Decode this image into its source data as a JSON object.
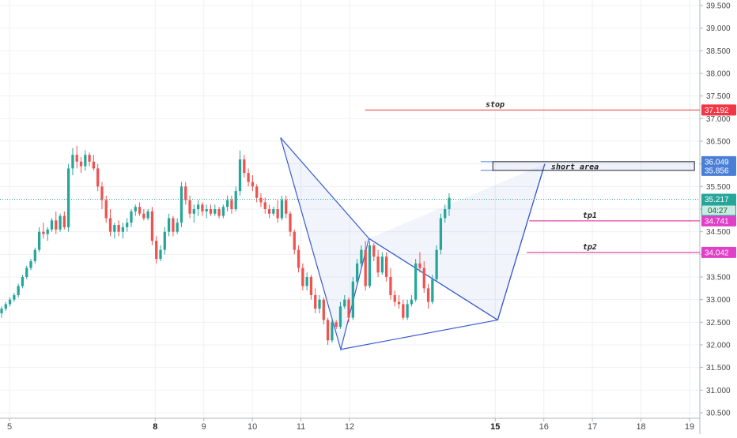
{
  "chart_data": {
    "type": "candlestick",
    "x_ticks": [
      {
        "label": "5",
        "day": 5,
        "bold": false
      },
      {
        "label": "8",
        "day": 8,
        "bold": true
      },
      {
        "label": "9",
        "day": 9,
        "bold": false
      },
      {
        "label": "10",
        "day": 10,
        "bold": false
      },
      {
        "label": "11",
        "day": 11,
        "bold": false
      },
      {
        "label": "12",
        "day": 12,
        "bold": false
      },
      {
        "label": "15",
        "day": 15,
        "bold": true
      },
      {
        "label": "16",
        "day": 16,
        "bold": false
      },
      {
        "label": "17",
        "day": 17,
        "bold": false
      },
      {
        "label": "18",
        "day": 18,
        "bold": false
      },
      {
        "label": "19",
        "day": 19,
        "bold": false
      }
    ],
    "y_ticks": [
      "39.500",
      "39.000",
      "38.500",
      "38.000",
      "37.500",
      "37.000",
      "36.500",
      "36.000",
      "35.500",
      "35.000",
      "34.500",
      "34.000",
      "33.500",
      "33.000",
      "32.500",
      "32.000",
      "31.500",
      "31.000",
      "30.500"
    ],
    "ylim": [
      30.5,
      39.6
    ],
    "xlim": [
      5.0,
      19.25
    ],
    "grid": true,
    "candles_ohlc": [
      [
        32.7,
        32.85,
        32.6,
        32.8
      ],
      [
        32.8,
        32.95,
        32.75,
        32.9
      ],
      [
        32.9,
        33.05,
        32.85,
        33.0
      ],
      [
        33.0,
        33.15,
        32.95,
        33.1
      ],
      [
        33.1,
        33.35,
        33.05,
        33.3
      ],
      [
        33.3,
        33.55,
        33.25,
        33.5
      ],
      [
        33.5,
        33.75,
        33.45,
        33.7
      ],
      [
        33.7,
        33.9,
        33.65,
        33.85
      ],
      [
        33.85,
        34.15,
        33.8,
        34.1
      ],
      [
        34.1,
        34.6,
        34.05,
        34.5
      ],
      [
        34.5,
        34.7,
        34.35,
        34.45
      ],
      [
        34.45,
        34.6,
        34.3,
        34.55
      ],
      [
        34.55,
        34.8,
        34.5,
        34.75
      ],
      [
        34.75,
        34.95,
        34.45,
        34.55
      ],
      [
        34.55,
        34.9,
        34.5,
        34.85
      ],
      [
        34.85,
        34.95,
        34.55,
        34.6
      ],
      [
        34.6,
        36.0,
        34.5,
        35.9
      ],
      [
        35.9,
        36.35,
        35.75,
        36.2
      ],
      [
        36.2,
        36.4,
        35.9,
        36.05
      ],
      [
        36.05,
        36.15,
        35.8,
        35.95
      ],
      [
        35.95,
        36.3,
        35.85,
        36.2
      ],
      [
        36.2,
        36.25,
        35.95,
        36.05
      ],
      [
        36.05,
        36.2,
        35.85,
        35.9
      ],
      [
        35.9,
        36.0,
        35.4,
        35.5
      ],
      [
        35.5,
        35.6,
        35.0,
        35.2
      ],
      [
        35.2,
        35.3,
        34.7,
        34.8
      ],
      [
        34.8,
        35.0,
        34.4,
        34.5
      ],
      [
        34.5,
        34.7,
        34.35,
        34.65
      ],
      [
        34.65,
        34.75,
        34.4,
        34.5
      ],
      [
        34.5,
        34.7,
        34.35,
        34.6
      ],
      [
        34.6,
        34.8,
        34.5,
        34.7
      ],
      [
        34.7,
        35.0,
        34.6,
        34.95
      ],
      [
        34.95,
        35.1,
        34.85,
        35.05
      ],
      [
        35.05,
        35.15,
        34.85,
        34.9
      ],
      [
        34.9,
        35.0,
        34.75,
        34.8
      ],
      [
        34.8,
        35.0,
        34.75,
        34.95
      ],
      [
        34.95,
        35.05,
        34.2,
        34.3
      ],
      [
        34.3,
        34.4,
        33.8,
        33.9
      ],
      [
        33.9,
        34.2,
        33.85,
        34.1
      ],
      [
        34.1,
        34.6,
        34.0,
        34.5
      ],
      [
        34.5,
        34.9,
        34.4,
        34.8
      ],
      [
        34.8,
        34.85,
        34.4,
        34.5
      ],
      [
        34.5,
        34.8,
        34.45,
        34.7
      ],
      [
        34.7,
        35.6,
        34.6,
        35.5
      ],
      [
        35.5,
        35.6,
        35.1,
        35.2
      ],
      [
        35.2,
        35.3,
        34.8,
        34.9
      ],
      [
        34.9,
        35.1,
        34.7,
        35.0
      ],
      [
        35.0,
        35.2,
        34.85,
        35.1
      ],
      [
        35.1,
        35.15,
        34.85,
        34.95
      ],
      [
        34.95,
        35.1,
        34.8,
        35.0
      ],
      [
        35.0,
        35.1,
        34.85,
        34.9
      ],
      [
        34.9,
        35.1,
        34.85,
        35.0
      ],
      [
        35.0,
        35.05,
        34.8,
        34.85
      ],
      [
        34.85,
        35.1,
        34.8,
        35.05
      ],
      [
        35.05,
        35.3,
        34.95,
        35.2
      ],
      [
        35.2,
        35.3,
        34.9,
        35.0
      ],
      [
        35.0,
        35.5,
        34.95,
        35.4
      ],
      [
        35.4,
        36.3,
        35.3,
        36.1
      ],
      [
        36.1,
        36.2,
        35.7,
        35.8
      ],
      [
        35.8,
        35.9,
        35.5,
        35.6
      ],
      [
        35.6,
        35.75,
        35.4,
        35.5
      ],
      [
        35.5,
        35.55,
        35.15,
        35.25
      ],
      [
        35.25,
        35.35,
        35.05,
        35.15
      ],
      [
        35.15,
        35.25,
        34.9,
        35.0
      ],
      [
        35.0,
        35.1,
        34.8,
        34.9
      ],
      [
        34.9,
        35.05,
        34.85,
        35.0
      ],
      [
        35.0,
        35.2,
        34.7,
        34.8
      ],
      [
        34.8,
        35.3,
        34.75,
        35.2
      ],
      [
        35.2,
        35.3,
        34.8,
        34.9
      ],
      [
        34.9,
        34.95,
        34.4,
        34.5
      ],
      [
        34.5,
        34.55,
        34.0,
        34.1
      ],
      [
        34.1,
        34.2,
        33.6,
        33.7
      ],
      [
        33.7,
        33.8,
        33.2,
        33.3
      ],
      [
        33.3,
        33.6,
        33.2,
        33.5
      ],
      [
        33.5,
        33.55,
        33.0,
        33.1
      ],
      [
        33.1,
        33.25,
        32.7,
        32.8
      ],
      [
        32.8,
        33.1,
        32.7,
        33.0
      ],
      [
        33.0,
        33.05,
        32.45,
        32.55
      ],
      [
        32.55,
        32.6,
        32.0,
        32.1
      ],
      [
        32.1,
        32.6,
        32.05,
        32.5
      ],
      [
        32.5,
        32.55,
        32.35,
        32.4
      ],
      [
        32.4,
        32.95,
        32.35,
        32.85
      ],
      [
        32.85,
        33.1,
        32.8,
        33.0
      ],
      [
        33.0,
        33.05,
        32.5,
        32.6
      ],
      [
        32.6,
        33.5,
        32.55,
        33.4
      ],
      [
        33.4,
        33.9,
        33.35,
        33.8
      ],
      [
        33.8,
        34.2,
        33.7,
        34.1
      ],
      [
        34.1,
        34.3,
        33.2,
        33.3
      ],
      [
        33.3,
        34.3,
        33.25,
        34.2
      ],
      [
        34.2,
        34.25,
        33.85,
        33.95
      ],
      [
        33.95,
        34.1,
        33.5,
        33.6
      ],
      [
        33.6,
        34.05,
        33.55,
        33.95
      ],
      [
        33.95,
        34.05,
        33.4,
        33.5
      ],
      [
        33.5,
        33.7,
        33.0,
        33.1
      ],
      [
        33.1,
        33.2,
        32.85,
        32.95
      ],
      [
        32.95,
        33.1,
        32.8,
        32.9
      ],
      [
        32.9,
        33.0,
        32.55,
        32.6
      ],
      [
        32.6,
        33.0,
        32.55,
        32.9
      ],
      [
        32.9,
        33.1,
        32.85,
        33.0
      ],
      [
        33.0,
        33.9,
        32.95,
        33.8
      ],
      [
        33.8,
        34.05,
        33.6,
        33.7
      ],
      [
        33.7,
        33.85,
        33.15,
        33.25
      ],
      [
        33.25,
        33.35,
        32.8,
        32.95
      ],
      [
        32.95,
        33.55,
        32.9,
        33.45
      ],
      [
        33.45,
        34.2,
        33.4,
        34.1
      ],
      [
        34.1,
        34.9,
        34.0,
        34.8
      ],
      [
        34.8,
        35.1,
        34.7,
        35.0
      ],
      [
        35.0,
        35.35,
        34.85,
        35.25
      ]
    ],
    "harmonic_pattern": [
      [
        10.58,
        36.58
      ],
      [
        11.82,
        31.9
      ],
      [
        12.4,
        34.35
      ],
      [
        15.05,
        32.55
      ],
      [
        16.02,
        36.0
      ]
    ],
    "pattern_closing_legs": [
      [
        [
          10.58,
          36.58
        ],
        [
          12.4,
          34.35
        ]
      ],
      [
        [
          12.4,
          34.35
        ],
        [
          15.05,
          32.55
        ]
      ],
      [
        [
          11.82,
          31.9
        ],
        [
          15.05,
          32.55
        ]
      ],
      [
        [
          15.05,
          32.55
        ],
        [
          16.02,
          36.0
        ]
      ]
    ],
    "horizontal_lines": [
      {
        "name": "stop",
        "label": "stop",
        "value": 37.192,
        "value_label": "37.192",
        "color": "#e53935",
        "x_start": 12.32,
        "x_label": 14.8
      },
      {
        "name": "tp1",
        "label": "tp1",
        "value": 34.741,
        "value_label": "34.741",
        "color": "#d81b8f",
        "x_start": 15.7,
        "x_label": 16.8
      },
      {
        "name": "tp2",
        "label": "tp2",
        "value": 34.042,
        "value_label": "34.042",
        "color": "#d81b8f",
        "x_start": 15.65,
        "x_label": 16.8
      }
    ],
    "short_area": {
      "label": "short area",
      "top": 36.049,
      "bottom": 35.856,
      "top_label": "36.049",
      "bottom_label": "35.856",
      "x_start": 14.95,
      "x_end": 19.1,
      "x_label": 16.15,
      "color": "#4a7fd8"
    },
    "current_price": {
      "value": 35.217,
      "value_label": "35.217",
      "countdown": "04:27",
      "color": "#26a69a"
    }
  }
}
